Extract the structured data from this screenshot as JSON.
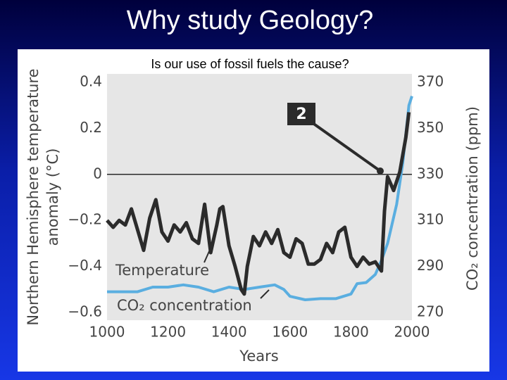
{
  "slide_title": "Why study Geology?",
  "chart_data": {
    "type": "line",
    "title": "Is our use of fossil fuels the cause?",
    "xlabel": "Years",
    "ylabel_lines": [
      "Northern Hemisphere temperature",
      "anomaly (°C)"
    ],
    "y2label": "CO₂ concentration (ppm)",
    "annotation": "2",
    "xlim": [
      1000,
      2000
    ],
    "xticks": [
      1000,
      1200,
      1400,
      1600,
      1800,
      2000
    ],
    "ylim": [
      -0.6,
      0.4
    ],
    "yticks": [
      {
        "value": -0.6,
        "label": "−0.6"
      },
      {
        "value": -0.4,
        "label": "−0.4"
      },
      {
        "value": -0.2,
        "label": "−0.2"
      },
      0,
      0.2,
      0.4
    ],
    "y2lim": [
      270,
      370
    ],
    "y2ticks": [
      270,
      290,
      310,
      330,
      350,
      370
    ],
    "zero_line": true,
    "series": [
      {
        "name": "Temperature",
        "color": "#2b2b2b",
        "x": [
          1000,
          1020,
          1040,
          1060,
          1080,
          1100,
          1120,
          1140,
          1160,
          1180,
          1200,
          1220,
          1240,
          1260,
          1280,
          1300,
          1320,
          1340,
          1350,
          1360,
          1370,
          1380,
          1400,
          1420,
          1440,
          1450,
          1460,
          1480,
          1500,
          1520,
          1540,
          1560,
          1580,
          1600,
          1620,
          1640,
          1660,
          1680,
          1700,
          1720,
          1740,
          1760,
          1780,
          1800,
          1820,
          1840,
          1860,
          1880,
          1900,
          1910,
          1920,
          1940,
          1960,
          1980,
          1990
        ],
        "values": [
          -0.2,
          -0.23,
          -0.2,
          -0.22,
          -0.15,
          -0.24,
          -0.33,
          -0.19,
          -0.11,
          -0.25,
          -0.29,
          -0.22,
          -0.25,
          -0.21,
          -0.28,
          -0.3,
          -0.13,
          -0.34,
          -0.28,
          -0.22,
          -0.15,
          -0.14,
          -0.31,
          -0.4,
          -0.5,
          -0.52,
          -0.4,
          -0.27,
          -0.31,
          -0.25,
          -0.3,
          -0.24,
          -0.34,
          -0.36,
          -0.28,
          -0.3,
          -0.39,
          -0.39,
          -0.37,
          -0.3,
          -0.34,
          -0.25,
          -0.23,
          -0.36,
          -0.4,
          -0.36,
          -0.39,
          -0.38,
          -0.42,
          -0.16,
          -0.01,
          -0.07,
          0.01,
          0.16,
          0.27
        ]
      },
      {
        "name": "CO₂ concentration",
        "color": "#5aaee0",
        "axis": "y2",
        "x": [
          1000,
          1100,
          1150,
          1200,
          1250,
          1300,
          1350,
          1400,
          1450,
          1500,
          1550,
          1580,
          1600,
          1650,
          1700,
          1750,
          1800,
          1820,
          1850,
          1880,
          1900,
          1920,
          1950,
          1970,
          1990,
          2000
        ],
        "values": [
          279,
          279,
          281,
          281,
          282,
          281,
          279,
          281,
          280,
          281,
          282,
          280,
          277,
          275.5,
          276,
          276,
          278,
          282.5,
          283,
          286.5,
          292.6,
          300,
          317,
          335,
          360,
          364
        ]
      }
    ]
  }
}
